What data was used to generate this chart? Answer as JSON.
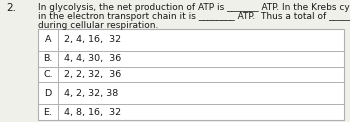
{
  "question_number": "2.",
  "question_text_line1": "In glycolysis, the net production of ATP is _______ ATP. In the Krebs cycle it is ______ ATP and",
  "question_text_line2": "in the electron transport chain it is ________ ATP.  Thus a total of ________ are produced",
  "question_text_line3": "during cellular respiration.",
  "options": [
    {
      "label": "A",
      "value": "2, 4, 16,  32",
      "tall": true
    },
    {
      "label": "B.",
      "value": "4, 4, 30,  36",
      "tall": false
    },
    {
      "label": "C.",
      "value": "2, 2, 32,  36",
      "tall": false
    },
    {
      "label": "D",
      "value": "4, 2, 32, 38",
      "tall": true
    },
    {
      "label": "E.",
      "value": "4, 8, 16,  32",
      "tall": false
    }
  ],
  "bg_color": "#f0f0ea",
  "table_bg": "#ffffff",
  "text_color": "#1a1a1a",
  "border_color": "#b0b0b0",
  "font_size_question": 6.5,
  "font_size_options": 6.8,
  "font_size_qnum": 7.5
}
